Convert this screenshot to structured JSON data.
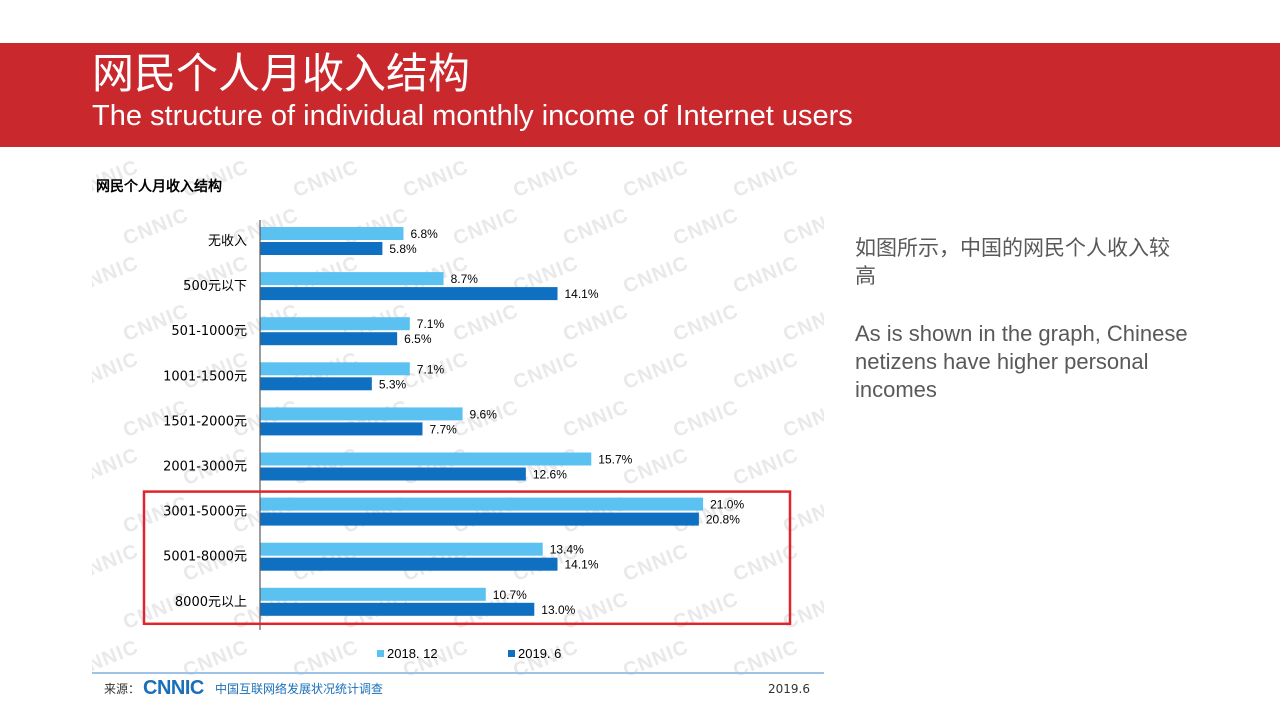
{
  "slide": {
    "title": "网民个人月收入结构",
    "subtitle": "The structure of individual monthly income of Internet users"
  },
  "side_text": {
    "zh": "如图所示，中国的网民个人收入较高",
    "en": "As is shown in the graph, Chinese netizens have higher personal incomes"
  },
  "footer": {
    "source_label": "来源：",
    "logo": "CNNIC",
    "org": "中国互联网络发展状况统计调查",
    "date": "2019.6"
  },
  "watermark_text": "CNNIC",
  "colors": {
    "banner": "#c9282d",
    "series_2018": "#5bc1f0",
    "series_2019": "#0f6fc0",
    "highlight": "#e0242b"
  },
  "chart_data": {
    "type": "bar",
    "orientation": "horizontal",
    "title": "网民个人月收入结构",
    "categories": [
      "无收入",
      "500元以下",
      "501-1000元",
      "1001-1500元",
      "1501-2000元",
      "2001-3000元",
      "3001-5000元",
      "5001-8000元",
      "8000元以上"
    ],
    "series": [
      {
        "name": "2018. 12",
        "values": [
          6.8,
          8.7,
          7.1,
          7.1,
          9.6,
          15.7,
          21.0,
          13.4,
          10.7
        ]
      },
      {
        "name": "2019. 6",
        "values": [
          5.8,
          14.1,
          6.5,
          5.3,
          7.7,
          12.6,
          20.8,
          14.1,
          13.0
        ]
      }
    ],
    "value_suffix": "%",
    "value_decimals": 1,
    "xlim": [
      0,
      25
    ],
    "grid": false,
    "legend": "bottom",
    "highlighted_categories": [
      "3001-5000元",
      "5001-8000元",
      "8000元以上"
    ]
  }
}
